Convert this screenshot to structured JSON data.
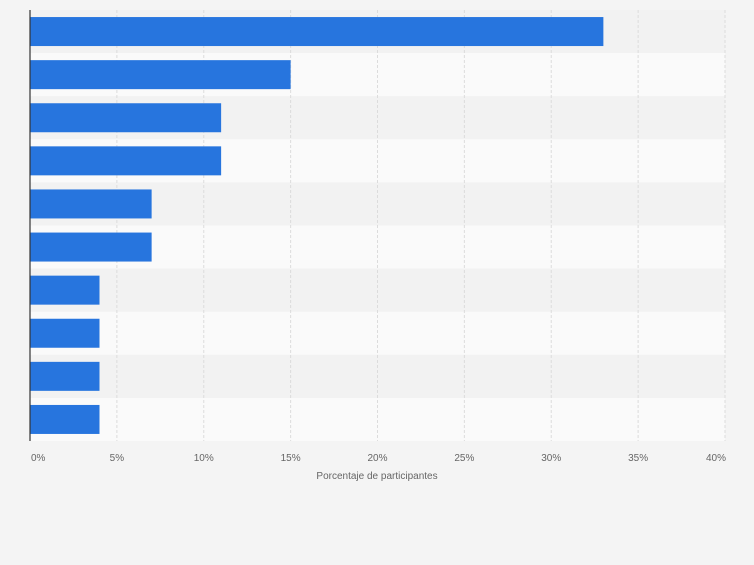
{
  "chart_data": {
    "type": "bar",
    "orientation": "horizontal",
    "categories": [
      "",
      "",
      "",
      "",
      "",
      "",
      "",
      "",
      "",
      ""
    ],
    "values": [
      33,
      15,
      11,
      11,
      7,
      7,
      4,
      4,
      4,
      4
    ],
    "xlabel": "Porcentaje de participantes",
    "ylabel": "",
    "xlim": [
      0,
      40
    ],
    "x_ticks": [
      "0%",
      "5%",
      "10%",
      "15%",
      "20%",
      "25%",
      "30%",
      "35%",
      "40%"
    ],
    "grid": true,
    "colors": {
      "bar": "#2775de",
      "background": "#f4f4f4",
      "band_light": "#fafafa",
      "band_dark": "#f2f2f2",
      "grid": "#dcdcdc",
      "axis": "#333333",
      "tick_text": "#666666"
    }
  }
}
